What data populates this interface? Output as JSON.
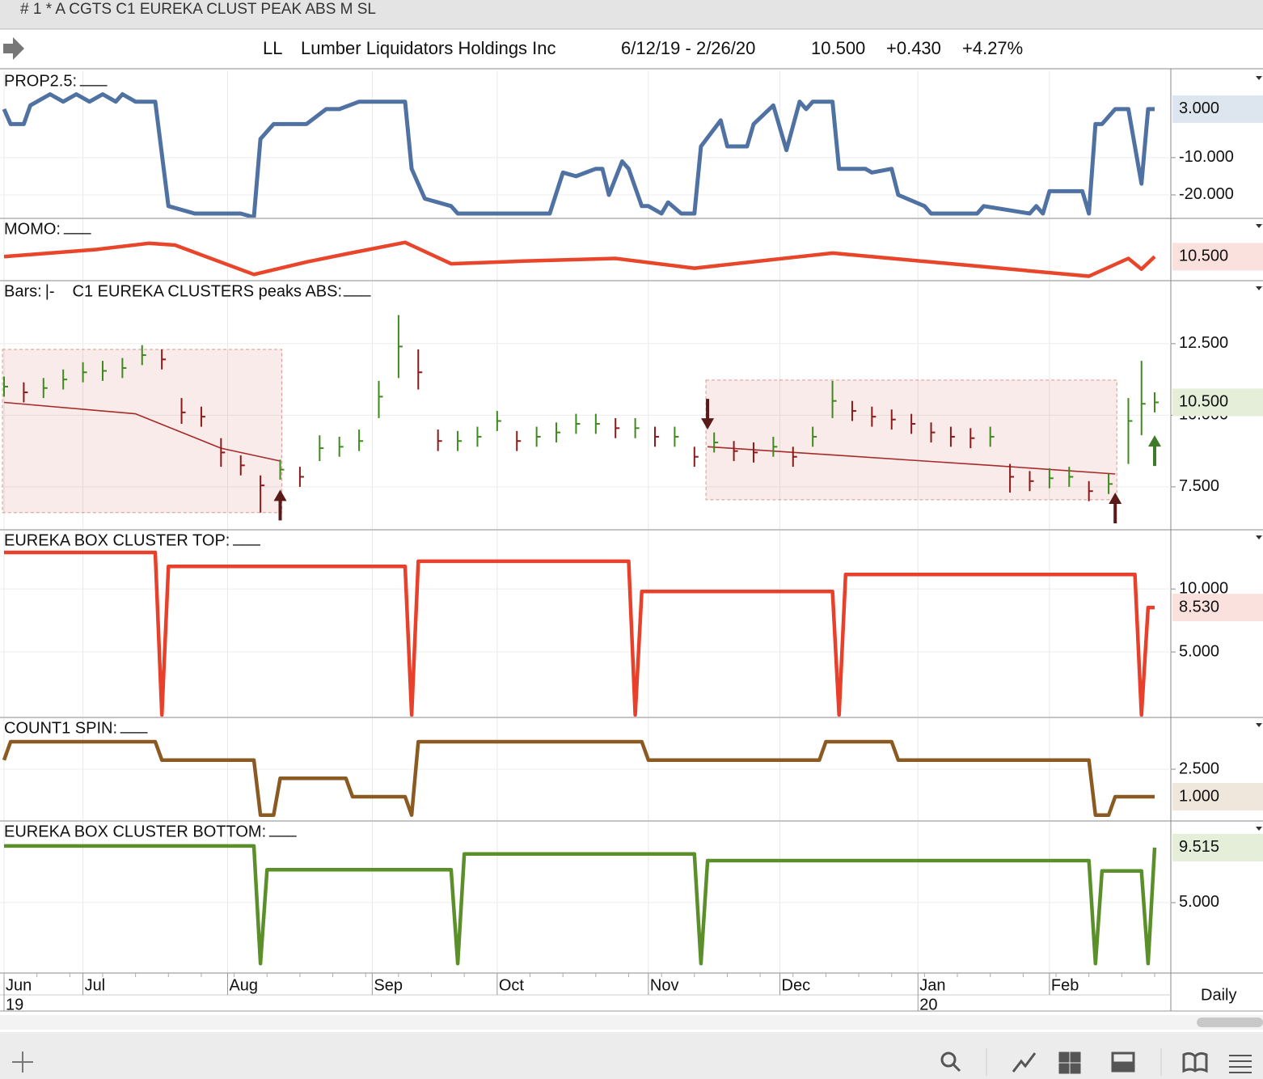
{
  "window_title": "# 1 * A CGTS  C1 EUREKA CLUST PEAK ABS M  SL",
  "header": {
    "symbol": "LL",
    "name": "Lumber Liquidators Holdings Inc",
    "range": "6/12/19 - 2/26/20",
    "last": "10.500",
    "change": "+0.430",
    "percent": "+4.27%"
  },
  "x_axis": {
    "xlim": [
      0,
      175
    ],
    "xticks": [
      {
        "value": 0,
        "label": "Jun"
      },
      {
        "value": 12,
        "label": "Jul"
      },
      {
        "value": 34,
        "label": "Aug"
      },
      {
        "value": 56,
        "label": "Sep"
      },
      {
        "value": 75,
        "label": "Oct"
      },
      {
        "value": 98,
        "label": "Nov"
      },
      {
        "value": 118,
        "label": "Dec"
      },
      {
        "value": 139,
        "label": "Jan"
      },
      {
        "value": 159,
        "label": "Feb"
      }
    ],
    "year_ticks": [
      {
        "value": 0,
        "label": "19"
      },
      {
        "value": 139,
        "label": "20"
      }
    ]
  },
  "chart_data": [
    {
      "type": "line",
      "title": "PROP2.5:",
      "marker": "___",
      "color": "#4f72a3",
      "tag_color": "#dde6ef",
      "ylim": [
        -26.3,
        13.4
      ],
      "yticks": [
        {
          "value": -10,
          "label": "-10.000"
        },
        {
          "value": -20,
          "label": "-20.000"
        }
      ],
      "last_label": "3.000",
      "x": [
        0,
        1,
        3,
        4,
        7,
        9,
        11,
        13,
        15,
        17,
        18,
        20,
        23,
        25,
        29,
        36,
        38,
        39,
        41,
        46,
        49,
        51,
        54,
        61,
        62,
        64,
        68,
        69,
        83,
        85,
        87,
        90,
        91,
        92,
        94,
        95,
        97,
        98,
        100,
        101,
        103,
        105,
        106,
        109,
        110,
        113,
        114,
        117,
        119,
        121,
        122,
        123,
        126,
        127,
        131,
        132,
        135,
        136,
        140,
        141,
        148,
        149,
        156,
        157,
        158,
        159,
        164,
        165,
        166,
        167,
        169,
        171,
        173,
        174,
        175
      ],
      "values": [
        3,
        -1,
        -1,
        4,
        7,
        5,
        7,
        5,
        7,
        5,
        7,
        5,
        5,
        -23,
        -25,
        -25,
        -26,
        -5,
        -1,
        -1,
        3,
        3,
        5,
        5,
        -13,
        -21,
        -23,
        -25,
        -25,
        -14,
        -15,
        -13,
        -13,
        -20,
        -11,
        -13,
        -23,
        -23,
        -25,
        -22,
        -25,
        -25,
        -7,
        0,
        -7,
        -7,
        -1,
        4,
        -8,
        5,
        3,
        5,
        5,
        -13,
        -13,
        -14,
        -13,
        -20,
        -23,
        -25,
        -25,
        -23,
        -25,
        -23,
        -25,
        -19,
        -19,
        -25,
        -1,
        -1,
        3,
        3,
        -17,
        3,
        3
      ]
    },
    {
      "type": "line",
      "title": "MOMO:",
      "marker": "___",
      "color": "#e8452a",
      "tag_color": "#fbe1de",
      "ylim": [
        9.15,
        12.65
      ],
      "yticks": [],
      "last_label": "10.500",
      "x": [
        0,
        14,
        22,
        26,
        38,
        46,
        52,
        61,
        68,
        79,
        93,
        105,
        126,
        135,
        147,
        165,
        171,
        173,
        175
      ],
      "values": [
        10.5,
        10.9,
        11.25,
        11.15,
        9.5,
        10.2,
        10.65,
        11.3,
        10.1,
        10.25,
        10.4,
        9.85,
        10.7,
        10.4,
        10,
        9.4,
        10.4,
        9.8,
        10.5
      ]
    },
    {
      "type": "ohlc",
      "title": "Bars:",
      "bars_marker": "|-",
      "title2": "C1 EUREKA CLUSTERS peaks ABS:",
      "marker": "___",
      "color": "#4a7a2a",
      "marker_color": "#4f72a3",
      "tag_color": "#e4eed9",
      "up_color": "#3d8a1e",
      "down_color": "#8b1a1a",
      "box_color": "#c0392b",
      "ylim": [
        6.0,
        14.7
      ],
      "yticks": [
        {
          "value": 12.5,
          "label": "12.500"
        },
        {
          "value": 10,
          "label": "10.000"
        },
        {
          "value": 7.5,
          "label": "7.500"
        }
      ],
      "last_label": "10.500",
      "x": [
        0,
        3,
        6,
        9,
        12,
        15,
        18,
        21,
        24,
        27,
        30,
        33,
        36,
        39,
        42,
        45,
        48,
        51,
        54,
        57,
        60,
        63,
        66,
        69,
        72,
        75,
        78,
        81,
        84,
        87,
        90,
        93,
        96,
        99,
        102,
        105,
        108,
        111,
        114,
        117,
        120,
        123,
        126,
        129,
        132,
        135,
        138,
        141,
        144,
        147,
        150,
        153,
        156,
        159,
        162,
        165,
        168,
        171,
        173,
        175
      ],
      "high": [
        11.35,
        11.15,
        11.3,
        11.6,
        11.85,
        11.9,
        12.0,
        12.45,
        12.3,
        10.6,
        10.3,
        9.2,
        8.6,
        7.9,
        8.45,
        8.2,
        9.3,
        9.25,
        9.5,
        11.2,
        13.5,
        12.3,
        9.5,
        9.45,
        9.6,
        10.15,
        9.45,
        9.6,
        9.75,
        10.05,
        10.05,
        9.9,
        9.9,
        9.6,
        9.6,
        8.9,
        9.4,
        9.1,
        9.05,
        9.25,
        8.9,
        9.6,
        11.2,
        10.5,
        10.3,
        10.2,
        10.05,
        9.75,
        9.6,
        9.55,
        9.6,
        8.3,
        8.05,
        8.15,
        8.2,
        7.7,
        7.95,
        10.6,
        11.9,
        10.8
      ],
      "low": [
        10.65,
        10.45,
        10.6,
        10.9,
        11.15,
        11.2,
        11.3,
        11.75,
        11.6,
        9.7,
        9.6,
        8.2,
        7.9,
        6.6,
        7.75,
        7.5,
        8.4,
        8.55,
        8.75,
        9.9,
        11.3,
        10.9,
        8.75,
        8.75,
        8.9,
        9.45,
        8.75,
        8.9,
        9.05,
        9.35,
        9.35,
        9.2,
        9.2,
        8.9,
        8.9,
        8.2,
        8.7,
        8.4,
        8.35,
        8.55,
        8.2,
        8.9,
        9.9,
        9.8,
        9.6,
        9.5,
        9.35,
        9.05,
        8.9,
        8.85,
        8.9,
        7.3,
        7.35,
        7.45,
        7.5,
        7.0,
        7.25,
        8.3,
        9.3,
        10.1
      ],
      "close": [
        11.0,
        10.8,
        10.95,
        11.25,
        11.5,
        11.55,
        11.65,
        12.1,
        11.95,
        10.1,
        9.95,
        8.7,
        8.25,
        7.55,
        8.1,
        7.85,
        8.85,
        8.9,
        9.1,
        10.65,
        12.4,
        11.5,
        9.1,
        9.1,
        9.25,
        9.8,
        9.1,
        9.25,
        9.4,
        9.7,
        9.7,
        9.55,
        9.55,
        9.25,
        9.25,
        8.55,
        9.05,
        8.75,
        8.7,
        8.9,
        8.55,
        9.25,
        10.5,
        10.15,
        9.95,
        9.85,
        9.7,
        9.4,
        9.25,
        9.2,
        9.25,
        7.85,
        7.7,
        7.8,
        7.85,
        7.35,
        7.6,
        9.8,
        10.4,
        10.45
      ],
      "ma": {
        "color": "#a52a2a",
        "x": [
          0,
          20,
          33,
          42,
          75,
          107,
          140,
          150,
          169
        ],
        "values": [
          10.45,
          10.05,
          8.85,
          8.4,
          null,
          8.9,
          8.4,
          8.25,
          7.95
        ]
      },
      "boxes": [
        {
          "x": [
            0,
            42
          ],
          "y": [
            6.6,
            12.3
          ]
        },
        {
          "x": [
            107,
            169
          ],
          "y": [
            7.05,
            11.23
          ]
        }
      ],
      "arrows": [
        {
          "x": 42,
          "y": 7.4,
          "direction": "up",
          "color": "#5a1a1a"
        },
        {
          "x": 107,
          "y": 9.5,
          "direction": "down",
          "color": "#5a1a1a"
        },
        {
          "x": 169,
          "y": 7.3,
          "direction": "up",
          "color": "#5a1a1a"
        },
        {
          "x": 175,
          "y": 9.3,
          "direction": "up",
          "color": "#3d7a2a"
        }
      ]
    },
    {
      "type": "line",
      "title": "EUREKA BOX CLUSTER TOP:",
      "marker": "___",
      "color": "#e8402a",
      "tag_color": "#fbe1de",
      "ylim": [
        -0.2,
        14.7
      ],
      "yticks": [
        {
          "value": 5,
          "label": "5.000"
        },
        {
          "value": 10,
          "label": "10.000"
        }
      ],
      "last_label": "8.530",
      "x": [
        0,
        23,
        24,
        25,
        61,
        62,
        63,
        95,
        96,
        97,
        126,
        127,
        128,
        172,
        173,
        174,
        175
      ],
      "values": [
        12.9,
        12.9,
        0,
        11.8,
        11.8,
        0,
        12.2,
        12.2,
        0,
        9.8,
        9.8,
        0,
        11.15,
        11.15,
        0,
        8.53,
        8.53
      ]
    },
    {
      "type": "line",
      "title": "COUNT1 SPIN:",
      "marker": "___",
      "color": "#8b5a22",
      "tag_color": "#efe6dc",
      "ylim": [
        -0.32,
        5.32
      ],
      "yticks": [
        {
          "value": 2.5,
          "label": "2.500"
        }
      ],
      "last_label": "1.000",
      "x": [
        0,
        1,
        23,
        24,
        38,
        39,
        41,
        42,
        52,
        53,
        61,
        62,
        63,
        97,
        98,
        124,
        125,
        135,
        136,
        165,
        166,
        168,
        169,
        175
      ],
      "values": [
        3,
        4,
        4,
        3,
        3,
        0,
        0,
        2,
        2,
        1,
        1,
        0,
        4,
        4,
        3,
        3,
        4,
        4,
        3,
        3,
        0,
        0,
        1,
        1
      ]
    },
    {
      "type": "line",
      "title": "EUREKA BOX CLUSTER BOTTOM:",
      "marker": "___",
      "color": "#5a8f2a",
      "tag_color": "#e4eed9",
      "ylim": [
        -0.78,
        11.7
      ],
      "yticks": [
        {
          "value": 5,
          "label": "5.000"
        }
      ],
      "last_label": "9.515",
      "x": [
        0,
        38,
        39,
        40,
        68,
        69,
        70,
        105,
        106,
        107,
        165,
        166,
        167,
        173,
        174,
        175
      ],
      "values": [
        9.65,
        9.65,
        0,
        7.7,
        7.7,
        0,
        9.0,
        9.0,
        0,
        8.45,
        8.45,
        0,
        7.6,
        7.6,
        0,
        9.515
      ]
    }
  ],
  "period": "Daily"
}
